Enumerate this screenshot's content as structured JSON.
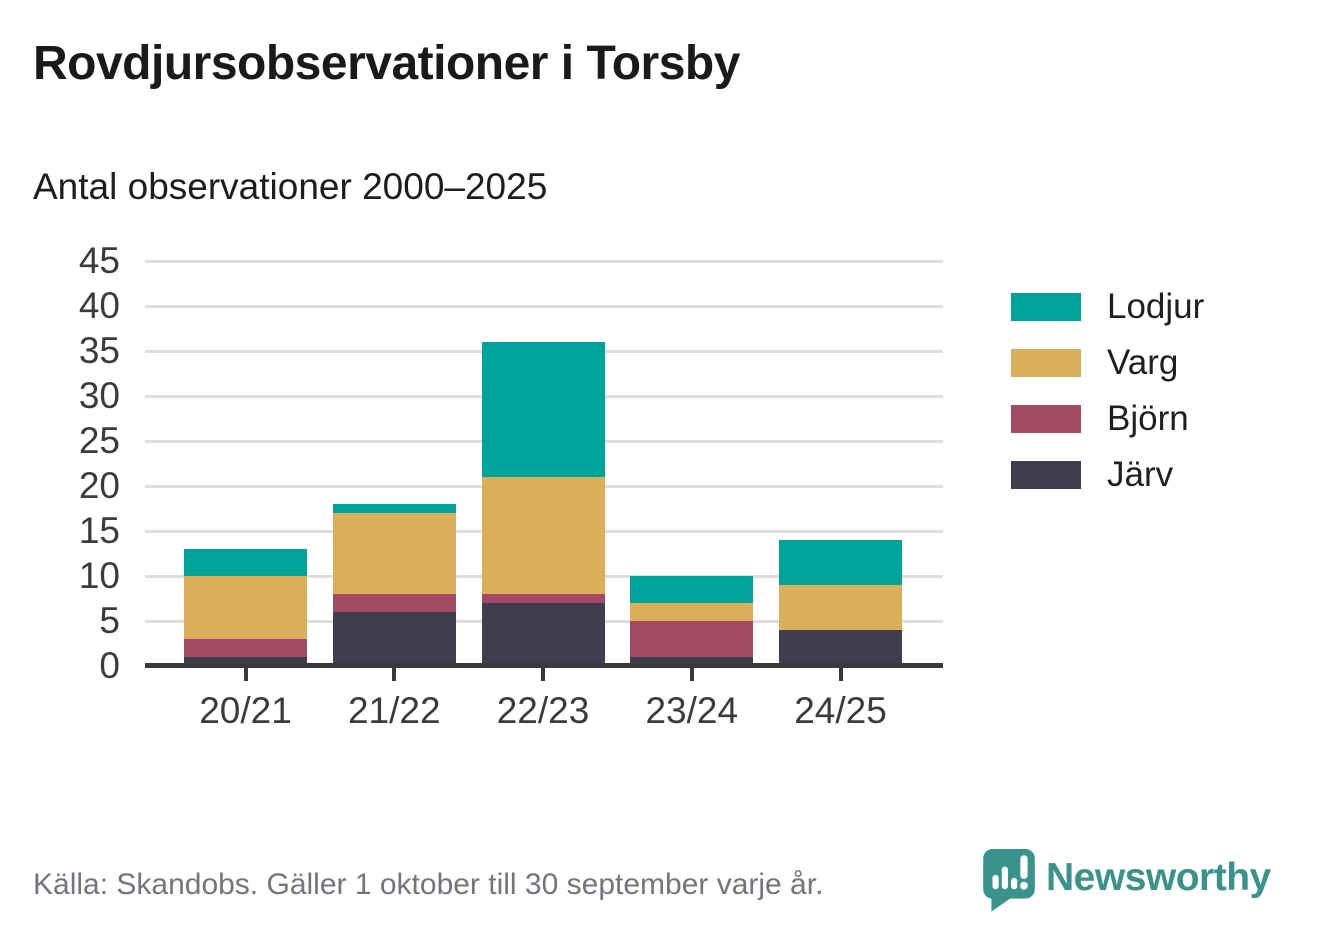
{
  "title": "Rovdjursobservationer i Torsby",
  "subtitle": "Antal observationer 2000–2025",
  "footer": {
    "source": "Källa: Skandobs. Gäller 1 oktober till 30 september varje år.",
    "brand": "Newsworthy"
  },
  "colors": {
    "lodjur": "#00a49a",
    "varg": "#ddae5a",
    "bjorn": "#a54a64",
    "jarv": "#3f3e4e",
    "grid": "#dedede",
    "axis": "#3a3a3a",
    "brand_teal": "#3a938b",
    "footer_gray": "#74747a"
  },
  "chart_data": {
    "type": "bar",
    "stacked": true,
    "title": "Rovdjursobservationer i Torsby",
    "subtitle": "Antal observationer 2000–2025",
    "categories": [
      "20/21",
      "21/22",
      "22/23",
      "23/24",
      "24/25"
    ],
    "series": [
      {
        "name": "Järv",
        "color": "#3f3e4e",
        "values": [
          1,
          6,
          7,
          1,
          4
        ]
      },
      {
        "name": "Björn",
        "color": "#a54a64",
        "values": [
          2,
          2,
          1,
          4,
          0
        ]
      },
      {
        "name": "Varg",
        "color": "#ddae5a",
        "values": [
          7,
          9,
          13,
          2,
          5
        ]
      },
      {
        "name": "Lodjur",
        "color": "#00a49a",
        "values": [
          3,
          1,
          15,
          3,
          5
        ]
      }
    ],
    "totals": [
      13,
      18,
      36,
      10,
      14
    ],
    "legend_order": [
      "Lodjur",
      "Varg",
      "Björn",
      "Järv"
    ],
    "legend_position": "right",
    "y_ticks": [
      0,
      5,
      10,
      15,
      20,
      25,
      30,
      35,
      40,
      45
    ],
    "ylim": [
      0,
      45
    ],
    "xlabel": "",
    "ylabel": "",
    "grid": true
  }
}
